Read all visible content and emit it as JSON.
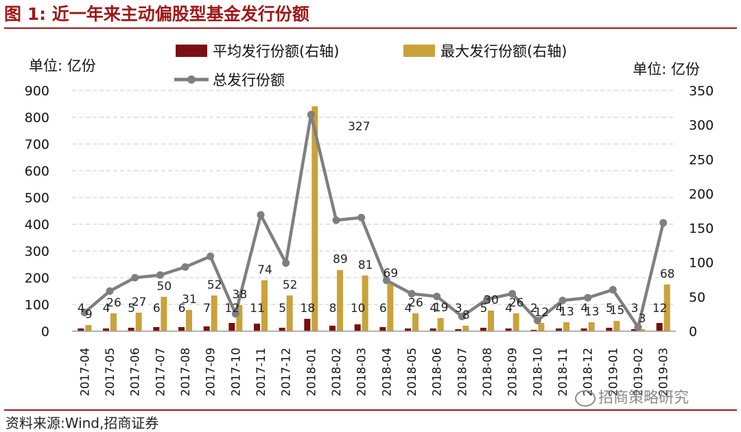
{
  "title": "图 1:  近一年来主动偏股型基金发行份额",
  "source": "资料来源:Wind,招商证券",
  "watermark": "招商策略研究",
  "watermark_icon": "wechat-icon",
  "colors": {
    "title": "#a01818",
    "avg_bar": "#7b0e10",
    "max_bar": "#c9a23a",
    "total_line": "#7f7f7f"
  },
  "chart_data": {
    "type": "bar",
    "left_unit": "单位: 亿份",
    "right_unit": "单位: 亿份",
    "categories": [
      "2017-04",
      "2017-05",
      "2017-06",
      "2017-07",
      "2017-08",
      "2017-09",
      "2017-10",
      "2017-11",
      "2017-12",
      "2018-01",
      "2018-02",
      "2018-03",
      "2018-04",
      "2018-05",
      "2018-06",
      "2018-07",
      "2018-08",
      "2018-09",
      "2018-10",
      "2018-11",
      "2018-12",
      "2019-01",
      "2019-02",
      "2019-03"
    ],
    "ylim_left": [
      0,
      900
    ],
    "yticks_left": [
      0,
      100,
      200,
      300,
      400,
      500,
      600,
      700,
      800,
      900
    ],
    "ylim_right": [
      0,
      350
    ],
    "yticks_right": [
      0,
      50,
      100,
      150,
      200,
      250,
      300,
      350
    ],
    "grid": "horizontal-dashed",
    "legend_position": "top",
    "series": [
      {
        "name": "平均发行份额(右轴)",
        "type": "bar",
        "axis": "right",
        "values": [
          4,
          4,
          5,
          6,
          6,
          7,
          12,
          11,
          5,
          18,
          8,
          10,
          6,
          4,
          4,
          3,
          5,
          4,
          2,
          4,
          4,
          5,
          3,
          12
        ],
        "labels": [
          "4",
          "4",
          "5",
          "6",
          "6",
          "7",
          "12",
          "11",
          "5",
          "18",
          "8",
          "10",
          "6",
          "4",
          "4",
          "3",
          "5",
          "4",
          "2",
          "4",
          "4",
          "5",
          "3",
          "12"
        ]
      },
      {
        "name": "最大发行份额(右轴)",
        "type": "bar",
        "axis": "right",
        "values": [
          9,
          26,
          27,
          50,
          31,
          52,
          38,
          74,
          52,
          327,
          89,
          81,
          69,
          26,
          19,
          8,
          30,
          26,
          12,
          13,
          13,
          15,
          3,
          68
        ],
        "labels": [
          "9",
          "26",
          "27",
          "50",
          "31",
          "52",
          "38",
          "74",
          "52",
          "327",
          "89",
          "81",
          "69",
          "26",
          "19",
          "8",
          "30",
          "26",
          "12",
          "13",
          "13",
          "15",
          "3",
          "68"
        ]
      },
      {
        "name": "总发行份额",
        "type": "line",
        "axis": "left",
        "values": [
          70,
          150,
          200,
          210,
          240,
          280,
          65,
          435,
          255,
          810,
          415,
          425,
          190,
          140,
          130,
          55,
          120,
          140,
          40,
          115,
          125,
          155,
          15,
          405
        ]
      }
    ]
  }
}
